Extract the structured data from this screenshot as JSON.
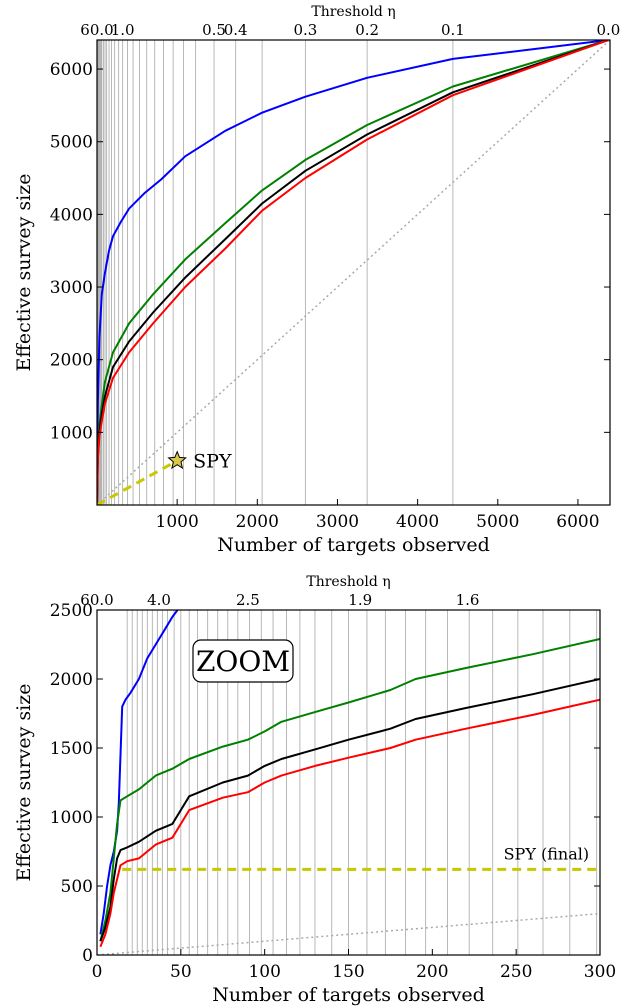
{
  "chart_data": [
    {
      "type": "line",
      "title": "",
      "xlabel": "Number of targets observed",
      "ylabel": "Effective survey size",
      "top_axis_label": "Threshold η",
      "xlim": [
        0,
        6400
      ],
      "ylim": [
        0,
        6400
      ],
      "xticks": [
        1000,
        2000,
        3000,
        4000,
        5000,
        6000
      ],
      "yticks": [
        1000,
        2000,
        3000,
        4000,
        5000,
        6000
      ],
      "top_ticks": [
        {
          "label": "60.0",
          "x": 0
        },
        {
          "label": "1.0",
          "x": 320
        },
        {
          "label": "0.5",
          "x": 1460
        },
        {
          "label": "0.4",
          "x": 1730
        },
        {
          "label": "0.3",
          "x": 2600
        },
        {
          "label": "0.2",
          "x": 3370
        },
        {
          "label": "0.1",
          "x": 4440
        },
        {
          "label": "0.0",
          "x": 6380
        }
      ],
      "threshold_gridlines_x": [
        5,
        10,
        15,
        20,
        30,
        40,
        50,
        60,
        80,
        100,
        120,
        150,
        180,
        220,
        270,
        320,
        380,
        450,
        530,
        620,
        720,
        830,
        950,
        1080,
        1230,
        1460,
        1730,
        2060,
        2600,
        3370,
        4440
      ],
      "grid": "vertical threshold lines",
      "series": [
        {
          "color": "#0000ff",
          "x": [
            0,
            10,
            30,
            60,
            100,
            150,
            200,
            300,
            400,
            600,
            800,
            1100,
            1600,
            2060,
            2600,
            3370,
            4440,
            6380
          ],
          "y": [
            0,
            1400,
            2300,
            2900,
            3200,
            3500,
            3700,
            3900,
            4080,
            4300,
            4480,
            4800,
            5150,
            5400,
            5620,
            5880,
            6140,
            6400
          ]
        },
        {
          "color": "#008000",
          "x": [
            0,
            10,
            30,
            60,
            100,
            200,
            400,
            700,
            1100,
            1600,
            2060,
            2600,
            3370,
            4440,
            6380
          ],
          "y": [
            0,
            700,
            1100,
            1380,
            1700,
            2100,
            2500,
            2900,
            3380,
            3880,
            4330,
            4750,
            5230,
            5760,
            6400
          ]
        },
        {
          "color": "#000000",
          "x": [
            0,
            10,
            30,
            60,
            100,
            200,
            400,
            700,
            1100,
            1600,
            2060,
            2600,
            3370,
            4440,
            6380
          ],
          "y": [
            0,
            650,
            1000,
            1250,
            1500,
            1900,
            2250,
            2650,
            3130,
            3660,
            4150,
            4600,
            5100,
            5680,
            6400
          ]
        },
        {
          "color": "#ff0000",
          "x": [
            0,
            10,
            30,
            60,
            100,
            200,
            400,
            700,
            1100,
            1600,
            2060,
            2600,
            3370,
            4440,
            6380
          ],
          "y": [
            0,
            620,
            950,
            1150,
            1400,
            1750,
            2100,
            2500,
            3000,
            3530,
            4050,
            4500,
            5030,
            5640,
            6400
          ]
        },
        {
          "color": "#aaaaaa",
          "style": "dotted",
          "x": [
            0,
            6400
          ],
          "y": [
            0,
            6400
          ]
        },
        {
          "color": "#c8c800",
          "style": "dashed",
          "x": [
            0,
            1000
          ],
          "y": [
            0,
            610
          ]
        }
      ],
      "annotations": [
        {
          "text": "SPY",
          "x": 1000,
          "y": 610,
          "marker": "star"
        }
      ]
    },
    {
      "type": "line",
      "title": "",
      "xlabel": "Number of targets observed",
      "ylabel": "Effective survey size",
      "top_axis_label": "Threshold η",
      "box_label": "ZOOM",
      "xlim": [
        0,
        300
      ],
      "ylim": [
        0,
        2500
      ],
      "xticks": [
        0,
        50,
        100,
        150,
        200,
        250,
        300
      ],
      "yticks": [
        0,
        500,
        1000,
        1500,
        2000,
        2500
      ],
      "top_ticks": [
        {
          "label": "60.0",
          "x": 0
        },
        {
          "label": "4.0",
          "x": 37
        },
        {
          "label": "2.5",
          "x": 90
        },
        {
          "label": "1.9",
          "x": 157
        },
        {
          "label": "1.6",
          "x": 221
        }
      ],
      "threshold_gridlines_x": [
        18,
        21,
        24,
        27,
        30,
        33,
        36,
        39,
        42,
        46,
        50,
        55,
        60,
        66,
        72,
        78,
        84,
        91,
        98,
        105,
        113,
        121,
        130,
        140,
        150,
        161,
        172,
        184,
        196,
        209,
        222,
        236,
        251,
        266,
        282,
        298
      ],
      "grid": "vertical threshold lines",
      "series": [
        {
          "color": "#0000ff",
          "x": [
            2,
            4,
            6,
            8,
            10,
            12,
            13,
            14,
            15,
            17,
            20,
            25,
            30,
            35,
            40,
            45,
            48
          ],
          "y": [
            150,
            300,
            500,
            650,
            750,
            900,
            1100,
            1450,
            1800,
            1850,
            1900,
            2000,
            2150,
            2250,
            2350,
            2450,
            2500
          ]
        },
        {
          "color": "#008000",
          "x": [
            2,
            5,
            8,
            10,
            12,
            14,
            18,
            25,
            35,
            45,
            55,
            75,
            90,
            100,
            110,
            130,
            150,
            175,
            190,
            220,
            260,
            300
          ],
          "y": [
            100,
            250,
            450,
            700,
            950,
            1120,
            1150,
            1200,
            1300,
            1350,
            1420,
            1510,
            1560,
            1620,
            1690,
            1760,
            1830,
            1920,
            2000,
            2080,
            2180,
            2290
          ]
        },
        {
          "color": "#000000",
          "x": [
            2,
            5,
            8,
            10,
            12,
            14,
            18,
            25,
            35,
            45,
            55,
            75,
            90,
            100,
            110,
            130,
            150,
            175,
            190,
            220,
            260,
            300
          ],
          "y": [
            100,
            200,
            350,
            550,
            700,
            760,
            780,
            820,
            900,
            950,
            1150,
            1250,
            1300,
            1370,
            1420,
            1490,
            1560,
            1640,
            1710,
            1790,
            1890,
            2000
          ]
        },
        {
          "color": "#ff0000",
          "x": [
            2,
            5,
            8,
            10,
            12,
            14,
            18,
            25,
            35,
            45,
            55,
            75,
            90,
            100,
            110,
            130,
            150,
            175,
            190,
            220,
            260,
            300
          ],
          "y": [
            60,
            150,
            300,
            450,
            550,
            650,
            680,
            700,
            800,
            850,
            1050,
            1140,
            1180,
            1250,
            1300,
            1370,
            1430,
            1500,
            1560,
            1640,
            1740,
            1850
          ]
        },
        {
          "color": "#aaaaaa",
          "style": "dotted",
          "x": [
            0,
            300
          ],
          "y": [
            0,
            300
          ]
        },
        {
          "color": "#c8c800",
          "style": "dashed",
          "x": [
            15,
            300
          ],
          "y": [
            620,
            620
          ]
        }
      ],
      "annotations": [
        {
          "text": "SPY (final)",
          "x": 268,
          "y": 620
        }
      ]
    }
  ]
}
